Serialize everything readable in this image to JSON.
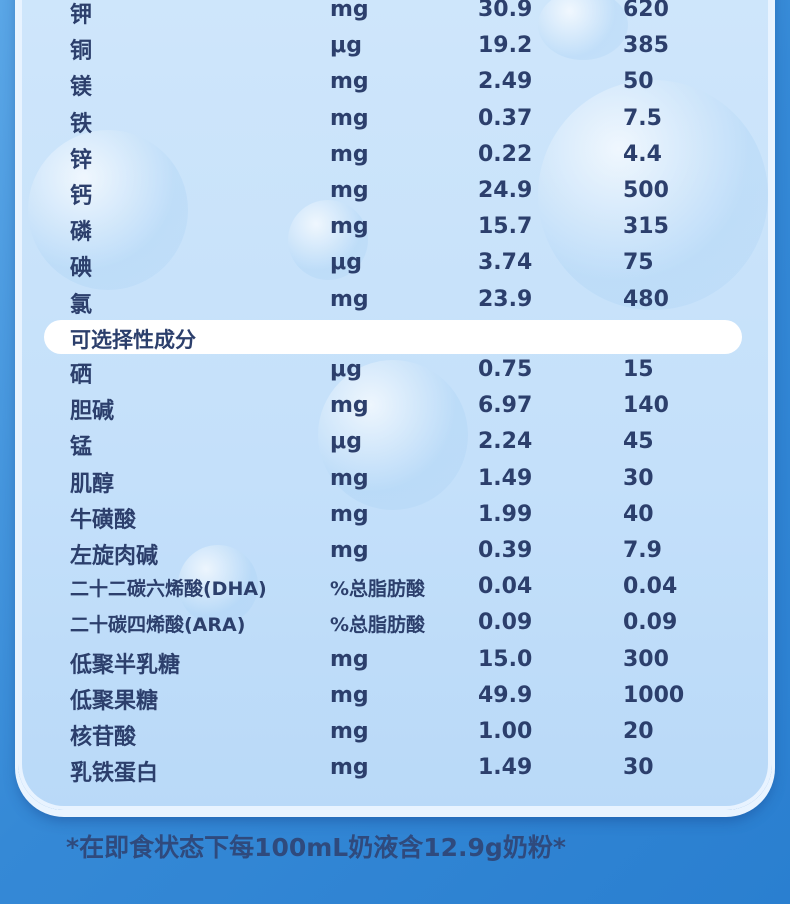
{
  "rows_top": [
    {
      "name": "钾",
      "unit": "mg",
      "per100kj": "30.9",
      "per100g": "620"
    },
    {
      "name": "铜",
      "unit": "μg",
      "per100kj": "19.2",
      "per100g": "385"
    },
    {
      "name": "镁",
      "unit": "mg",
      "per100kj": "2.49",
      "per100g": "50"
    },
    {
      "name": "铁",
      "unit": "mg",
      "per100kj": "0.37",
      "per100g": "7.5"
    },
    {
      "name": "锌",
      "unit": "mg",
      "per100kj": "0.22",
      "per100g": "4.4"
    },
    {
      "name": "钙",
      "unit": "mg",
      "per100kj": "24.9",
      "per100g": "500"
    },
    {
      "name": "磷",
      "unit": "mg",
      "per100kj": "15.7",
      "per100g": "315"
    },
    {
      "name": "碘",
      "unit": "μg",
      "per100kj": "3.74",
      "per100g": "75"
    },
    {
      "name": "氯",
      "unit": "mg",
      "per100kj": "23.9",
      "per100g": "480"
    }
  ],
  "section_title": "可选择性成分",
  "rows_optional": [
    {
      "name": "硒",
      "unit": "μg",
      "per100kj": "0.75",
      "per100g": "15"
    },
    {
      "name": "胆碱",
      "unit": "mg",
      "per100kj": "6.97",
      "per100g": "140"
    },
    {
      "name": "锰",
      "unit": "μg",
      "per100kj": "2.24",
      "per100g": "45"
    },
    {
      "name": "肌醇",
      "unit": "mg",
      "per100kj": "1.49",
      "per100g": "30"
    },
    {
      "name": "牛磺酸",
      "unit": "mg",
      "per100kj": "1.99",
      "per100g": "40"
    },
    {
      "name": "左旋肉碱",
      "unit": "mg",
      "per100kj": "0.39",
      "per100g": "7.9"
    },
    {
      "name": "二十二碳六烯酸(DHA)",
      "unit": "%总脂肪酸",
      "per100kj": "0.04",
      "per100g": "0.04"
    },
    {
      "name": "二十碳四烯酸(ARA)",
      "unit": "%总脂肪酸",
      "per100kj": "0.09",
      "per100g": "0.09"
    },
    {
      "name": "低聚半乳糖",
      "unit": "mg",
      "per100kj": "15.0",
      "per100g": "300"
    },
    {
      "name": "低聚果糖",
      "unit": "mg",
      "per100kj": "49.9",
      "per100g": "1000"
    },
    {
      "name": "核苷酸",
      "unit": "mg",
      "per100kj": "1.00",
      "per100g": "20"
    },
    {
      "name": "乳铁蛋白",
      "unit": "mg",
      "per100kj": "1.49",
      "per100g": "30"
    }
  ],
  "footnote": "*在即食状态下每100mL奶液含12.9g奶粉*",
  "colors": {
    "text": "#2c3f6c",
    "background": "#3589d6",
    "panel": "#c4e0fa"
  }
}
